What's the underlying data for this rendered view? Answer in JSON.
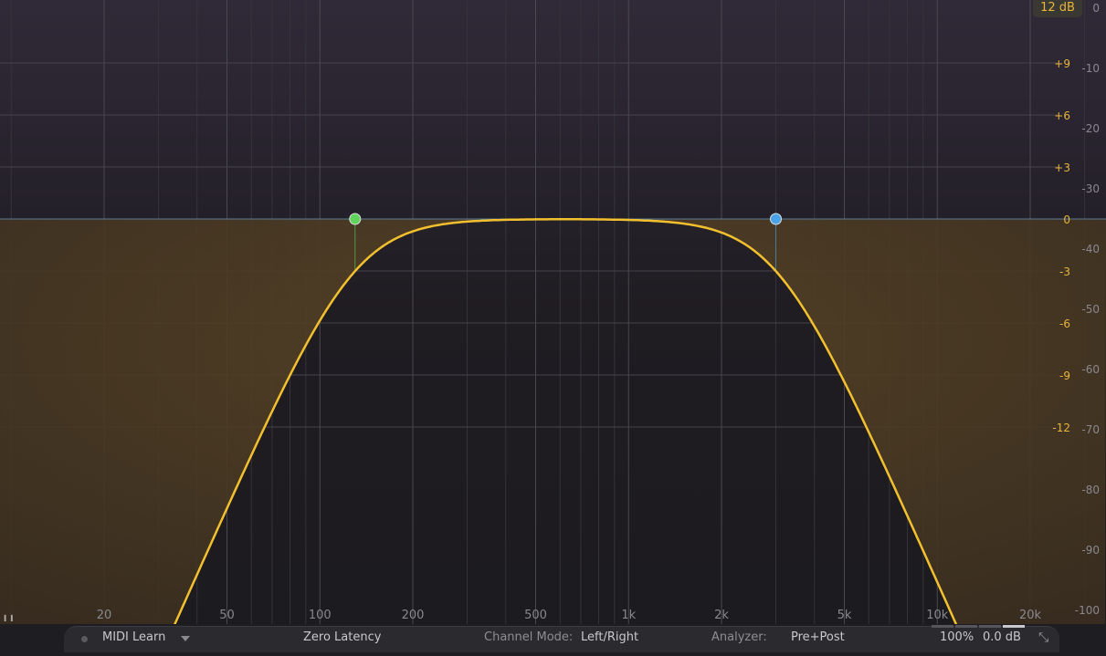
{
  "display": {
    "range_label": "12 dB",
    "gain_scale": [
      "+9",
      "+6",
      "+3",
      "0",
      "-3",
      "-6",
      "-9",
      "-12"
    ],
    "gain_scale_values": [
      9,
      6,
      3,
      0,
      -3,
      -6,
      -9,
      -12
    ],
    "analyzer_scale": [
      "0",
      "-10",
      "-20",
      "-30",
      "-40",
      "-50",
      "-60",
      "-70",
      "-80",
      "-90",
      "-100"
    ],
    "analyzer_scale_values": [
      0,
      -10,
      -20,
      -30,
      -40,
      -50,
      -60,
      -70,
      -80,
      -90,
      -100
    ],
    "freq_labels": [
      "20",
      "50",
      "100",
      "200",
      "500",
      "1k",
      "2k",
      "5k",
      "10k",
      "20k"
    ],
    "freq_label_values": [
      20,
      50,
      100,
      200,
      500,
      1000,
      2000,
      5000,
      10000,
      20000
    ]
  },
  "bands": [
    {
      "type": "high-cut-low",
      "freq_hz": 130,
      "gain_db": 0,
      "color": "#5fd35a"
    },
    {
      "type": "low-pass",
      "freq_hz": 3000,
      "gain_db": 0,
      "color": "#4aa3e8"
    }
  ],
  "colors": {
    "curve": "#f2c02e",
    "accent": "#e8b43a",
    "fill": "#8a6a2a"
  },
  "bottom_bar": {
    "midi_learn": "MIDI Learn",
    "latency": "Zero Latency",
    "channel_mode_label": "Channel Mode:",
    "channel_mode_value": "Left/Right",
    "analyzer_label": "Analyzer:",
    "analyzer_value": "Pre+Post",
    "zoom": "100%",
    "output_gain": "0.0 dB"
  }
}
